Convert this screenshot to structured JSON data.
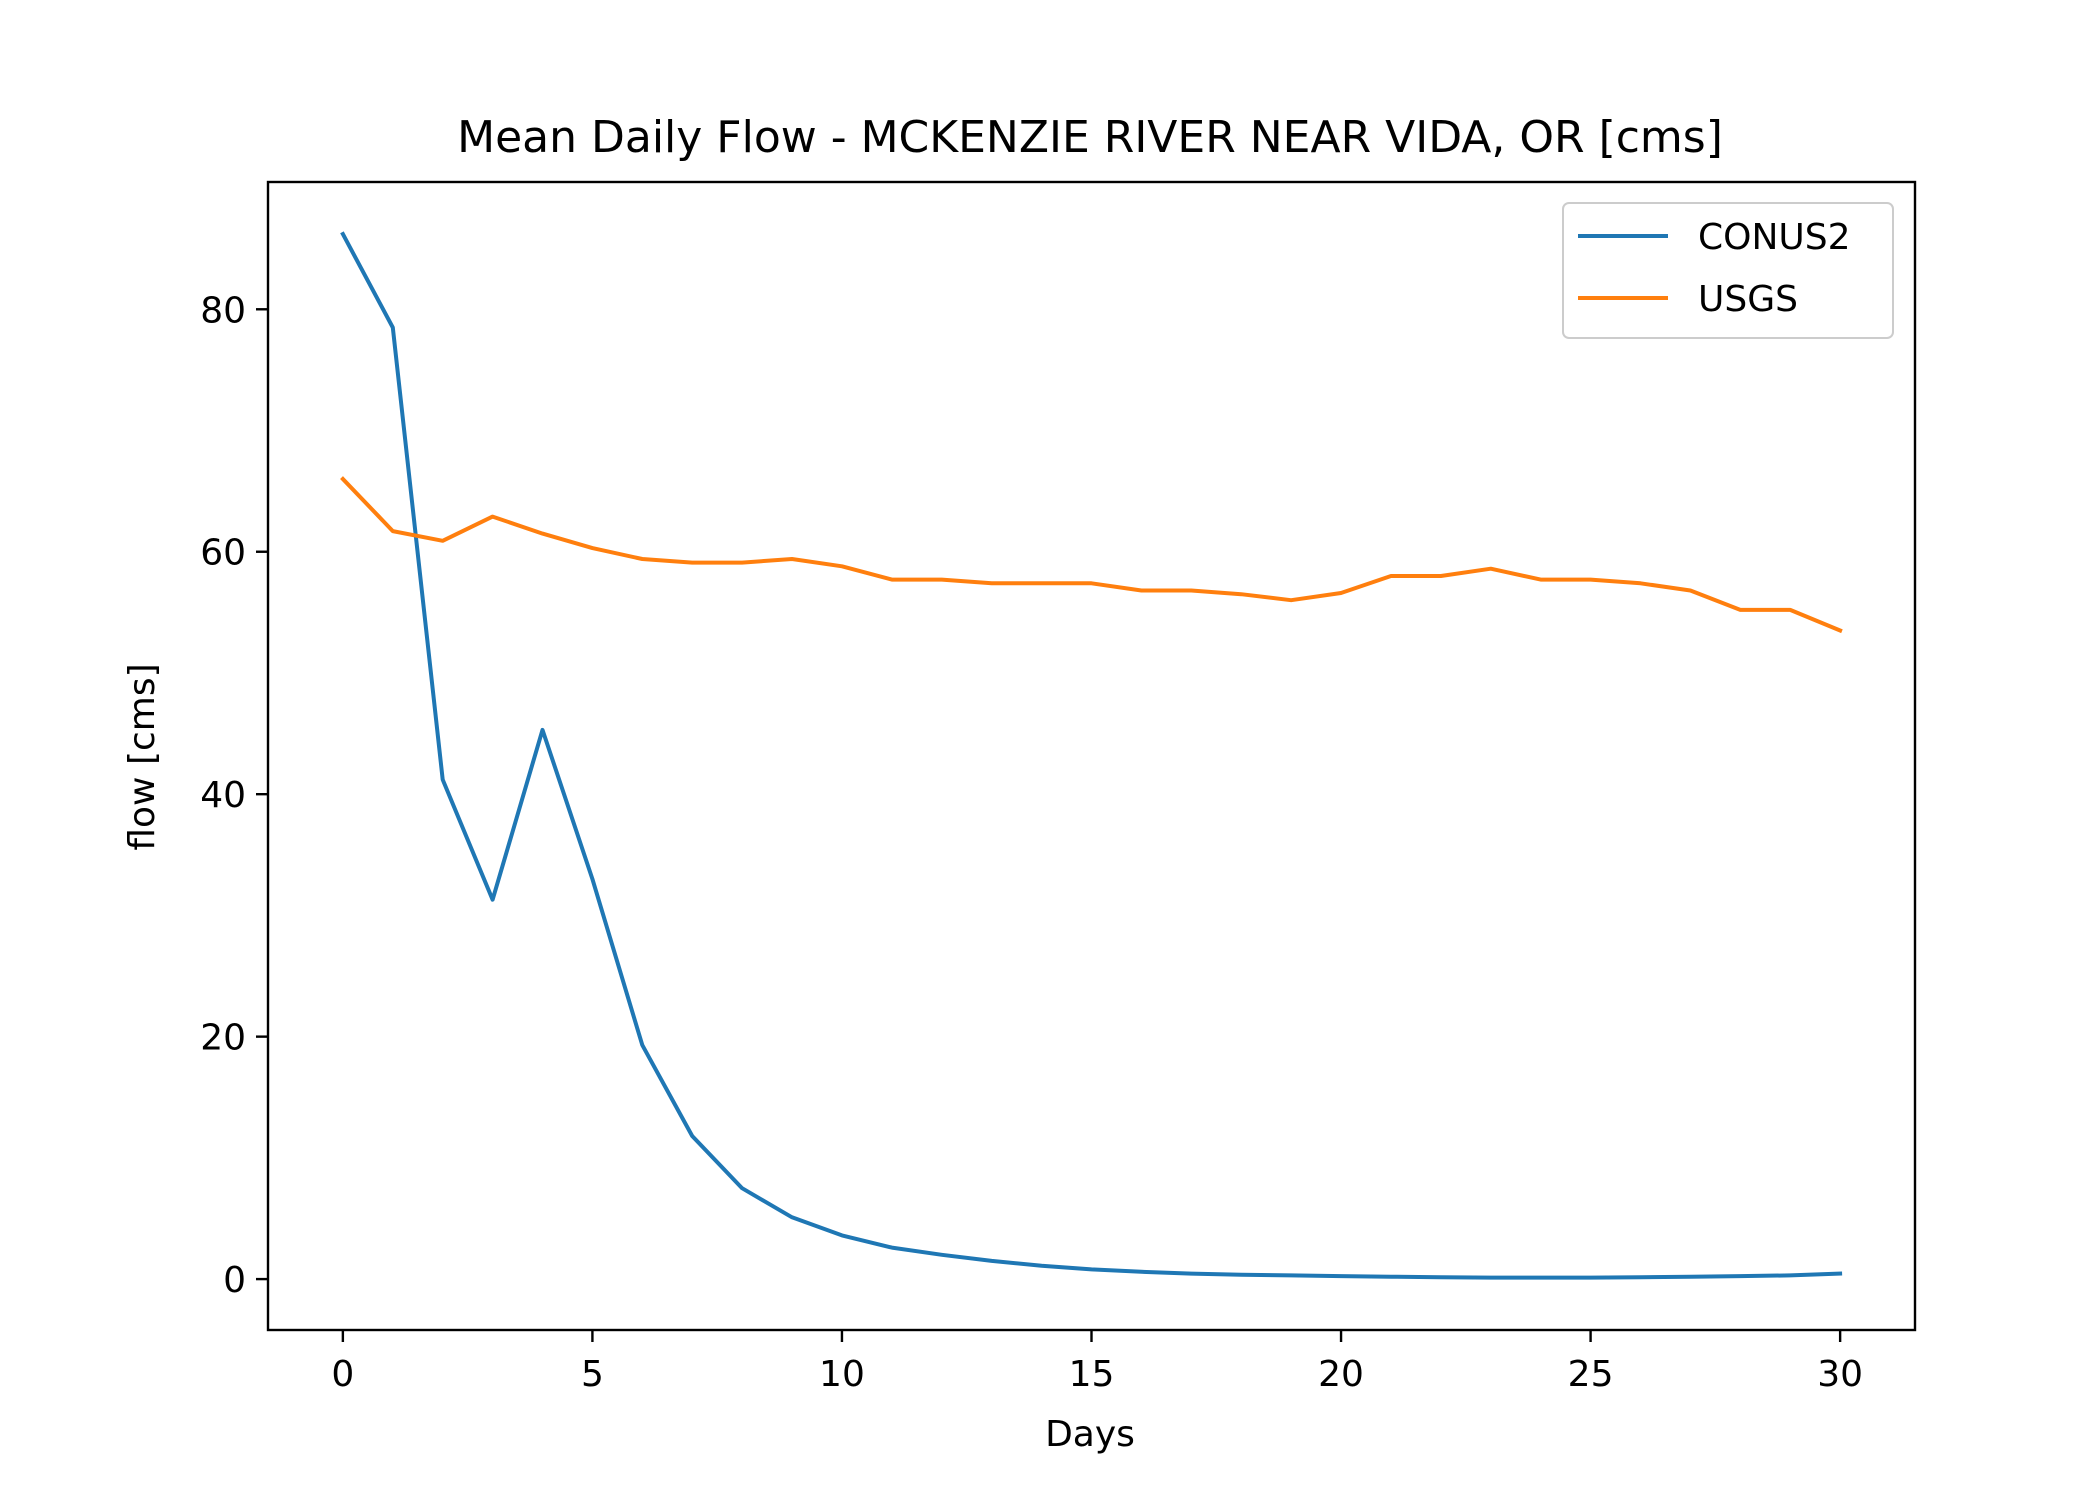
{
  "chart_data": {
    "type": "line",
    "title": "Mean Daily Flow - MCKENZIE RIVER NEAR VIDA, OR [cms]",
    "xlabel": "Days",
    "ylabel": "flow [cms]",
    "xlim": [
      -1.5,
      31.5
    ],
    "ylim": [
      -4.2,
      90.5
    ],
    "xticks": [
      0,
      5,
      10,
      15,
      20,
      25,
      30
    ],
    "yticks": [
      0,
      20,
      40,
      60,
      80
    ],
    "grid": false,
    "legend_position": "upper right",
    "x": [
      0,
      1,
      2,
      3,
      4,
      5,
      6,
      7,
      8,
      9,
      10,
      11,
      12,
      13,
      14,
      15,
      16,
      17,
      18,
      19,
      20,
      21,
      22,
      23,
      24,
      25,
      26,
      27,
      28,
      29,
      30
    ],
    "series": [
      {
        "name": "CONUS2",
        "color": "#1f77b4",
        "values": [
          86.2,
          78.5,
          41.2,
          31.3,
          45.3,
          33.0,
          19.3,
          11.8,
          7.5,
          5.1,
          3.6,
          2.6,
          2.0,
          1.5,
          1.1,
          0.8,
          0.6,
          0.45,
          0.35,
          0.3,
          0.25,
          0.2,
          0.15,
          0.12,
          0.12,
          0.12,
          0.15,
          0.2,
          0.25,
          0.3,
          0.45
        ]
      },
      {
        "name": "USGS",
        "color": "#ff7f0e",
        "values": [
          66.0,
          61.7,
          60.9,
          62.9,
          61.5,
          60.3,
          59.4,
          59.1,
          59.1,
          59.4,
          58.8,
          57.7,
          57.7,
          57.4,
          57.4,
          57.4,
          56.8,
          56.8,
          56.5,
          56.0,
          56.6,
          58.0,
          58.0,
          58.6,
          57.7,
          57.7,
          57.4,
          56.8,
          55.2,
          55.2,
          53.5
        ]
      }
    ]
  }
}
